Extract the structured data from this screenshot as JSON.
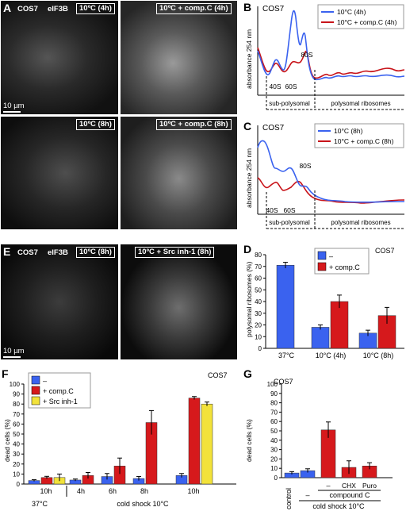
{
  "panels": {
    "A": {
      "letter": "A",
      "cell": "COS7",
      "stain": "eIF3B",
      "img1": "10ºC (4h)",
      "img2": "10ºC + comp.C (4h)",
      "img3": "10ºC (8h)",
      "img4": "10ºC + comp.C (8h)",
      "scale": "10 µm"
    },
    "E": {
      "letter": "E",
      "cell": "COS7",
      "stain": "eIF3B",
      "img1": "10ºC (8h)",
      "img2": "10ºC + Src inh-1 (8h)",
      "scale": "10 µm"
    },
    "B": {
      "letter": "B",
      "cell": "COS7",
      "ylabel": "absorbance 254 nm",
      "legend": [
        "10°C (4h)",
        "10°C + comp.C (4h)"
      ],
      "peaks": [
        "40S",
        "60S",
        "80S"
      ],
      "sub": "sub-polysomal",
      "poly": "polysomal ribosomes"
    },
    "C": {
      "letter": "C",
      "cell": "COS7",
      "ylabel": "absorbance 254 nm",
      "legend": [
        "10°C (8h)",
        "10°C + comp.C (8h)"
      ],
      "peaks": [
        "40S",
        "60S",
        "80S"
      ],
      "sub": "sub-polysomal",
      "poly": "polysomal ribosomes"
    },
    "D": {
      "letter": "D",
      "cell": "COS7",
      "ylabel": "polysomal ribosomes (%)",
      "legend": [
        "–",
        "+ comp.C"
      ],
      "ticks": [
        "0",
        "10",
        "20",
        "30",
        "40",
        "50",
        "60",
        "70",
        "80"
      ],
      "xlabels": [
        "37°C",
        "10°C (4h)",
        "10°C (8h)"
      ]
    },
    "F": {
      "letter": "F",
      "cell": "COS7",
      "ylabel": "dead cells (%)",
      "legend": [
        "–",
        "+ comp.C",
        "+ Src inh-1"
      ],
      "ticks": [
        "0",
        "10",
        "20",
        "30",
        "40",
        "50",
        "60",
        "70",
        "80",
        "90",
        "100"
      ],
      "xlabels": [
        "10h",
        "4h",
        "6h",
        "8h",
        "10h"
      ],
      "group1": "37°C",
      "group2": "cold shock 10°C"
    },
    "G": {
      "letter": "G",
      "cell": "COS7",
      "ylabel": "dead cells (%)",
      "ticks": [
        "0",
        "10",
        "20",
        "30",
        "40",
        "50",
        "60",
        "70",
        "80",
        "90",
        "100"
      ],
      "x1": "control",
      "x2": "–",
      "x3": "–",
      "x4": "CHX",
      "x5": "Puro",
      "compound": "compound C",
      "group": "cold shock 10°C"
    }
  },
  "colors": {
    "blue": "#3a62ef",
    "red": "#d6191c",
    "yellow": "#f2e23a",
    "trace_blue": "#3a62ef",
    "trace_red": "#c8141a"
  },
  "chart_data": [
    {
      "type": "line",
      "panel": "B",
      "series": [
        {
          "name": "10°C (4h)"
        },
        {
          "name": "10°C + comp.C (4h)"
        }
      ],
      "ylabel": "absorbance 254 nm"
    },
    {
      "type": "line",
      "panel": "C",
      "series": [
        {
          "name": "10°C (8h)"
        },
        {
          "name": "10°C + comp.C (8h)"
        }
      ],
      "ylabel": "absorbance 254 nm"
    },
    {
      "type": "bar",
      "panel": "D",
      "categories": [
        "37°C",
        "10°C (4h)",
        "10°C (8h)"
      ],
      "series": [
        {
          "name": "–",
          "values": [
            71,
            18,
            13
          ],
          "err": [
            2.5,
            2,
            2.5
          ]
        },
        {
          "name": "+ comp.C",
          "values": [
            null,
            40,
            28
          ],
          "err": [
            null,
            5.5,
            7
          ]
        }
      ],
      "ylabel": "polysomal ribosomes (%)",
      "ylim": [
        0,
        80
      ]
    },
    {
      "type": "bar",
      "panel": "F",
      "categories": [
        "37°C 10h",
        "4h",
        "6h",
        "8h",
        "10h"
      ],
      "series": [
        {
          "name": "–",
          "values": [
            3.5,
            4,
            7.5,
            5.5,
            8.5
          ],
          "err": [
            0.8,
            1,
            3,
            2,
            2
          ]
        },
        {
          "name": "+ comp.C",
          "values": [
            6.5,
            8.5,
            18,
            61.5,
            86
          ],
          "err": [
            1.2,
            3,
            8,
            12,
            1.5
          ]
        },
        {
          "name": "+ Src inh-1",
          "values": [
            6.5,
            null,
            null,
            null,
            80
          ],
          "err": [
            3.5,
            null,
            null,
            null,
            2
          ]
        }
      ],
      "ylabel": "dead cells (%)",
      "ylim": [
        0,
        100
      ]
    },
    {
      "type": "bar",
      "panel": "G",
      "categories": [
        "control",
        "–",
        "–",
        "CHX",
        "Puro"
      ],
      "values": [
        5,
        7.5,
        51,
        11,
        12.5
      ],
      "err": [
        1.5,
        2,
        8.5,
        7,
        3.5
      ],
      "ylabel": "dead cells (%)",
      "ylim": [
        0,
        100
      ]
    }
  ]
}
